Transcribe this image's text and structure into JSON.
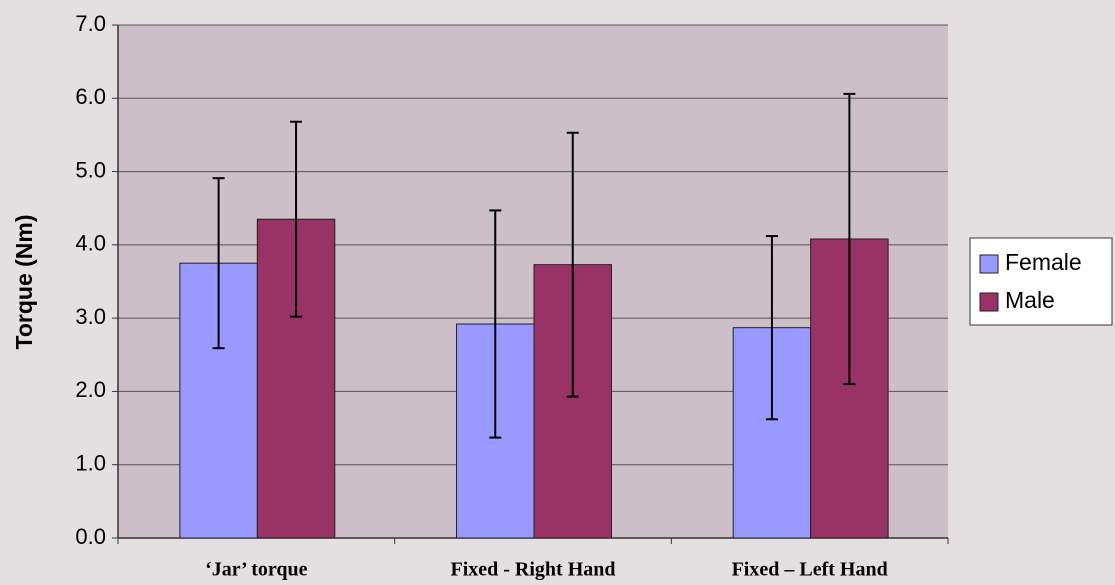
{
  "chart_data": {
    "type": "bar",
    "y_label": "Torque (Nm)",
    "categories": [
      "‘Jar’ torque",
      "Fixed - Right Hand",
      "Fixed – Left Hand"
    ],
    "series": [
      {
        "name": "Female",
        "color": "#9999ff",
        "values": [
          3.75,
          2.92,
          2.87
        ],
        "errors": [
          1.16,
          1.55,
          1.25
        ]
      },
      {
        "name": "Male",
        "color": "#993366",
        "values": [
          4.35,
          3.73,
          4.08
        ],
        "errors": [
          1.33,
          1.8,
          1.98
        ]
      }
    ],
    "ylim": [
      0,
      7
    ],
    "yticks": [
      {
        "value": 0,
        "label": "0.0"
      },
      {
        "value": 1,
        "label": "1.0"
      },
      {
        "value": 2,
        "label": "2.0"
      },
      {
        "value": 3,
        "label": "3.0"
      },
      {
        "value": 4,
        "label": "4.0"
      },
      {
        "value": 5,
        "label": "5.0"
      },
      {
        "value": 6,
        "label": "6.0"
      },
      {
        "value": 7,
        "label": "7.0"
      }
    ],
    "grid": true,
    "legend": "right"
  }
}
